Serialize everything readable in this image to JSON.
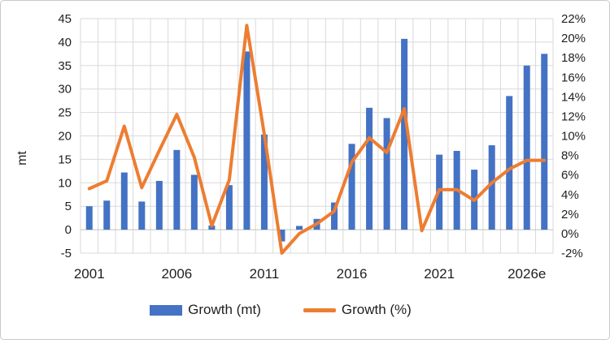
{
  "chart_data": {
    "type": "combo-bar-line",
    "categories": [
      2001,
      2002,
      2003,
      2004,
      2005,
      2006,
      2007,
      2008,
      2009,
      2010,
      2011,
      2012,
      2013,
      2014,
      2015,
      2016,
      2017,
      2018,
      2019,
      2020,
      2021,
      2022,
      2023,
      2024,
      2025,
      2026,
      2027
    ],
    "series": [
      {
        "name": "Growth (mt)",
        "type": "bar",
        "axis": "left",
        "color": "#4472C4",
        "values": [
          5.0,
          6.2,
          12.2,
          6.0,
          10.4,
          17.0,
          11.7,
          0.9,
          9.5,
          38.0,
          20.3,
          -2.5,
          0.8,
          2.3,
          5.8,
          18.3,
          26.0,
          23.8,
          40.7,
          0.0,
          16.0,
          16.8,
          12.8,
          18.0,
          28.5,
          35.0,
          37.5
        ]
      },
      {
        "name": "Growth (%)",
        "type": "line",
        "axis": "right",
        "color": "#ED7D31",
        "values": [
          4.6,
          5.4,
          11.0,
          4.7,
          8.5,
          12.2,
          7.8,
          0.8,
          5.5,
          21.3,
          10.2,
          -2.0,
          0.0,
          1.0,
          2.3,
          7.3,
          9.8,
          8.3,
          12.8,
          0.3,
          4.5,
          4.5,
          3.4,
          5.2,
          6.6,
          7.5,
          7.5
        ]
      }
    ],
    "left_axis": {
      "label": "mt",
      "min": -5,
      "max": 45,
      "step": 5,
      "tick_labels": [
        "45",
        "40",
        "35",
        "30",
        "25",
        "20",
        "15",
        "10",
        "5",
        "0",
        "-5"
      ]
    },
    "right_axis": {
      "min": -2,
      "max": 22,
      "step": 2,
      "tick_labels": [
        "22%",
        "20%",
        "18%",
        "16%",
        "14%",
        "12%",
        "10%",
        "8%",
        "6%",
        "4%",
        "2%",
        "0%",
        "-2%"
      ]
    },
    "x_axis": {
      "tick_labels": [
        "2001",
        "2006",
        "2011",
        "2016",
        "2021",
        "2026e"
      ],
      "tick_positions": [
        1,
        6,
        11,
        16,
        21,
        26
      ]
    },
    "grid": {
      "horizontal": true,
      "vertical": true,
      "color": "#d9d9d9"
    },
    "legend": {
      "position": "bottom",
      "items": [
        {
          "label": "Growth (mt)",
          "swatch": "bar",
          "color": "#4472C4"
        },
        {
          "label": "Growth (%)",
          "swatch": "line",
          "color": "#ED7D31"
        }
      ]
    },
    "text_color": "#1f1f1f"
  }
}
